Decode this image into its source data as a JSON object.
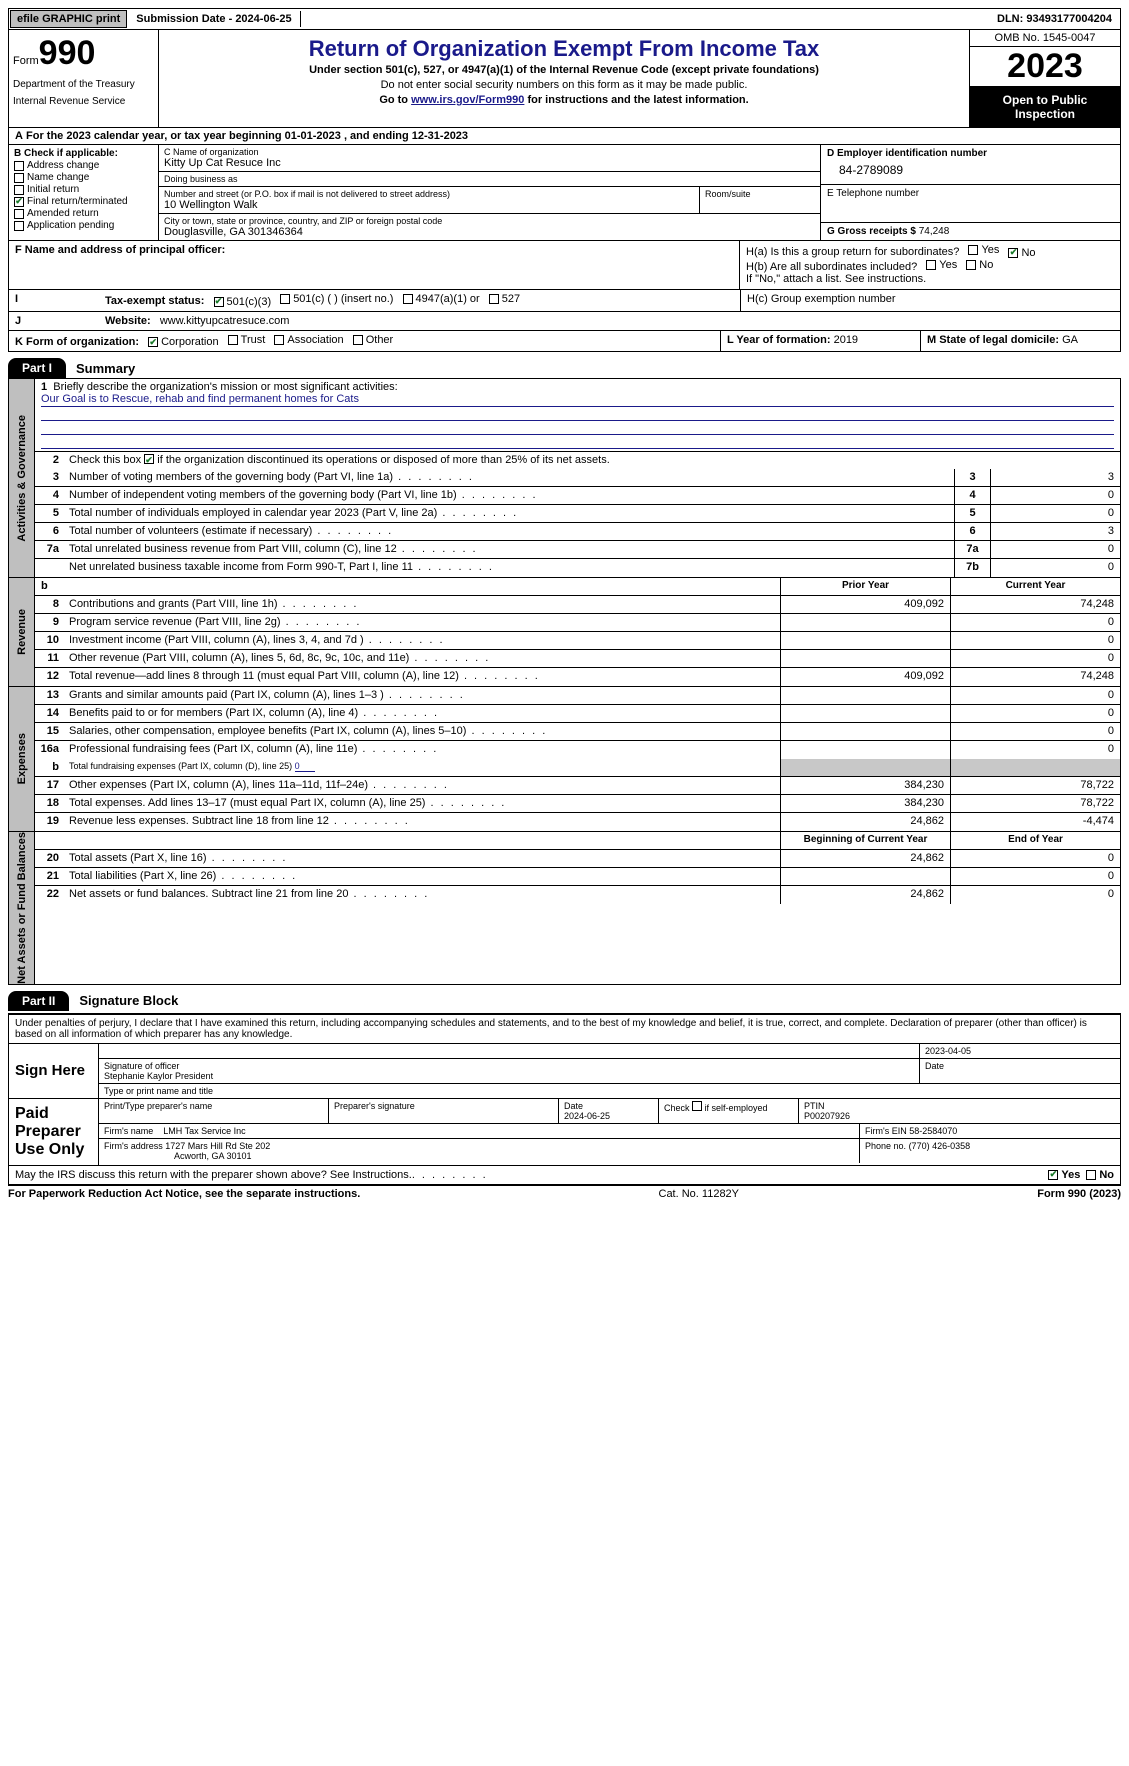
{
  "topbar": {
    "efile": "efile GRAPHIC print",
    "submission": "Submission Date - 2024-06-25",
    "dln": "DLN: 93493177004204"
  },
  "header": {
    "form_prefix": "Form",
    "form_num": "990",
    "title": "Return of Organization Exempt From Income Tax",
    "subtitle": "Under section 501(c), 527, or 4947(a)(1) of the Internal Revenue Code (except private foundations)",
    "warn": "Do not enter social security numbers on this form as it may be made public.",
    "goto_pre": "Go to ",
    "goto_link": "www.irs.gov/Form990",
    "goto_post": " for instructions and the latest information.",
    "dept": "Department of the Treasury",
    "irs": "Internal Revenue Service",
    "omb": "OMB No. 1545-0047",
    "year": "2023",
    "open": "Open to Public Inspection"
  },
  "A": {
    "text": "For the 2023 calendar year, or tax year beginning 01-01-2023   , and ending 12-31-2023"
  },
  "B": {
    "header": "B Check if applicable:",
    "items": [
      "Address change",
      "Name change",
      "Initial return",
      "Final return/terminated",
      "Amended return",
      "Application pending"
    ],
    "checked_idx": 3
  },
  "C": {
    "name_lbl": "C Name of organization",
    "name": "Kitty Up Cat Resuce Inc",
    "dba_lbl": "Doing business as",
    "dba": "",
    "street_lbl": "Number and street (or P.O. box if mail is not delivered to street address)",
    "street": "10 Wellington Walk",
    "room_lbl": "Room/suite",
    "city_lbl": "City or town, state or province, country, and ZIP or foreign postal code",
    "city": "Douglasville, GA  301346364"
  },
  "D": {
    "lbl": "D Employer identification number",
    "val": "84-2789089"
  },
  "E": {
    "lbl": "E Telephone number",
    "val": ""
  },
  "G": {
    "lbl": "G Gross receipts $",
    "val": "74,248"
  },
  "F": {
    "lbl": "F  Name and address of principal officer:",
    "val": ""
  },
  "H": {
    "a": "H(a)  Is this a group return for subordinates?",
    "b": "H(b)  Are all subordinates included?",
    "note": "If \"No,\" attach a list. See instructions.",
    "c": "H(c)  Group exemption number",
    "yes": "Yes",
    "no": "No"
  },
  "I": {
    "lbl": "Tax-exempt status:",
    "opts": [
      "501(c)(3)",
      "501(c) (   ) (insert no.)",
      "4947(a)(1) or",
      "527"
    ]
  },
  "J": {
    "lbl": "Website:",
    "val": "www.kittyupcatresuce.com"
  },
  "K": {
    "lbl": "K Form of organization:",
    "opts": [
      "Corporation",
      "Trust",
      "Association",
      "Other"
    ]
  },
  "L": {
    "lbl": "L Year of formation:",
    "val": "2019"
  },
  "M": {
    "lbl": "M State of legal domicile:",
    "val": "GA"
  },
  "part1": {
    "tab": "Part I",
    "title": "Summary"
  },
  "gov": {
    "label": "Activities & Governance",
    "l1": "Briefly describe the organization's mission or most significant activities:",
    "mission": "Our Goal is to Rescue, rehab and find permanent homes for Cats",
    "l2": "Check this box       if the organization discontinued its operations or disposed of more than 25% of its net assets.",
    "rows": [
      {
        "n": "3",
        "t": "Number of voting members of the governing body (Part VI, line 1a)",
        "b": "3",
        "v": "3"
      },
      {
        "n": "4",
        "t": "Number of independent voting members of the governing body (Part VI, line 1b)",
        "b": "4",
        "v": "0"
      },
      {
        "n": "5",
        "t": "Total number of individuals employed in calendar year 2023 (Part V, line 2a)",
        "b": "5",
        "v": "0"
      },
      {
        "n": "6",
        "t": "Total number of volunteers (estimate if necessary)",
        "b": "6",
        "v": "3"
      },
      {
        "n": "7a",
        "t": "Total unrelated business revenue from Part VIII, column (C), line 12",
        "b": "7a",
        "v": "0"
      },
      {
        "n": "",
        "t": "Net unrelated business taxable income from Form 990-T, Part I, line 11",
        "b": "7b",
        "v": "0"
      }
    ]
  },
  "rev": {
    "label": "Revenue",
    "hdr_b": "b",
    "prior": "Prior Year",
    "current": "Current Year",
    "rows": [
      {
        "n": "8",
        "t": "Contributions and grants (Part VIII, line 1h)",
        "p": "409,092",
        "c": "74,248"
      },
      {
        "n": "9",
        "t": "Program service revenue (Part VIII, line 2g)",
        "p": "",
        "c": "0"
      },
      {
        "n": "10",
        "t": "Investment income (Part VIII, column (A), lines 3, 4, and 7d )",
        "p": "",
        "c": "0"
      },
      {
        "n": "11",
        "t": "Other revenue (Part VIII, column (A), lines 5, 6d, 8c, 9c, 10c, and 11e)",
        "p": "",
        "c": "0"
      },
      {
        "n": "12",
        "t": "Total revenue—add lines 8 through 11 (must equal Part VIII, column (A), line 12)",
        "p": "409,092",
        "c": "74,248"
      }
    ]
  },
  "exp": {
    "label": "Expenses",
    "rows": [
      {
        "n": "13",
        "t": "Grants and similar amounts paid (Part IX, column (A), lines 1–3 )",
        "p": "",
        "c": "0"
      },
      {
        "n": "14",
        "t": "Benefits paid to or for members (Part IX, column (A), line 4)",
        "p": "",
        "c": "0"
      },
      {
        "n": "15",
        "t": "Salaries, other compensation, employee benefits (Part IX, column (A), lines 5–10)",
        "p": "",
        "c": "0"
      },
      {
        "n": "16a",
        "t": "Professional fundraising fees (Part IX, column (A), line 11e)",
        "p": "",
        "c": "0"
      }
    ],
    "l16b_n": "b",
    "l16b": "Total fundraising expenses (Part IX, column (D), line 25)",
    "l16b_val": "0",
    "rows2": [
      {
        "n": "17",
        "t": "Other expenses (Part IX, column (A), lines 11a–11d, 11f–24e)",
        "p": "384,230",
        "c": "78,722"
      },
      {
        "n": "18",
        "t": "Total expenses. Add lines 13–17 (must equal Part IX, column (A), line 25)",
        "p": "384,230",
        "c": "78,722"
      },
      {
        "n": "19",
        "t": "Revenue less expenses. Subtract line 18 from line 12",
        "p": "24,862",
        "c": "-4,474"
      }
    ]
  },
  "net": {
    "label": "Net Assets or Fund Balances",
    "begin": "Beginning of Current Year",
    "end": "End of Year",
    "rows": [
      {
        "n": "20",
        "t": "Total assets (Part X, line 16)",
        "p": "24,862",
        "c": "0"
      },
      {
        "n": "21",
        "t": "Total liabilities (Part X, line 26)",
        "p": "",
        "c": "0"
      },
      {
        "n": "22",
        "t": "Net assets or fund balances. Subtract line 21 from line 20",
        "p": "24,862",
        "c": "0"
      }
    ]
  },
  "part2": {
    "tab": "Part II",
    "title": "Signature Block"
  },
  "sig": {
    "decl": "Under penalties of perjury, I declare that I have examined this return, including accompanying schedules and statements, and to the best of my knowledge and belief, it is true, correct, and complete. Declaration of preparer (other than officer) is based on all information of which preparer has any knowledge.",
    "sign_here": "Sign Here",
    "sig_officer": "Signature of officer",
    "officer": "Stephanie Kaylor President",
    "type_lbl": "Type or print name and title",
    "date_lbl": "Date",
    "date1": "2023-04-05",
    "paid": "Paid Preparer Use Only",
    "prep_name_lbl": "Print/Type preparer's name",
    "prep_sig_lbl": "Preparer's signature",
    "date2_lbl": "Date",
    "date2": "2024-06-25",
    "self_lbl": "Check        if self-employed",
    "ptin_lbl": "PTIN",
    "ptin": "P00207926",
    "firm_name_lbl": "Firm's name",
    "firm_name": "LMH Tax Service Inc",
    "firm_ein_lbl": "Firm's EIN",
    "firm_ein": "58-2584070",
    "firm_addr_lbl": "Firm's address",
    "firm_addr1": "1727 Mars Hill Rd Ste 202",
    "firm_addr2": "Acworth, GA  30101",
    "phone_lbl": "Phone no.",
    "phone": "(770) 426-0358",
    "discuss": "May the IRS discuss this return with the preparer shown above? See Instructions."
  },
  "footer": {
    "left": "For Paperwork Reduction Act Notice, see the separate instructions.",
    "mid": "Cat. No. 11282Y",
    "right_pre": "Form ",
    "right_form": "990",
    "right_post": " (2023)"
  }
}
